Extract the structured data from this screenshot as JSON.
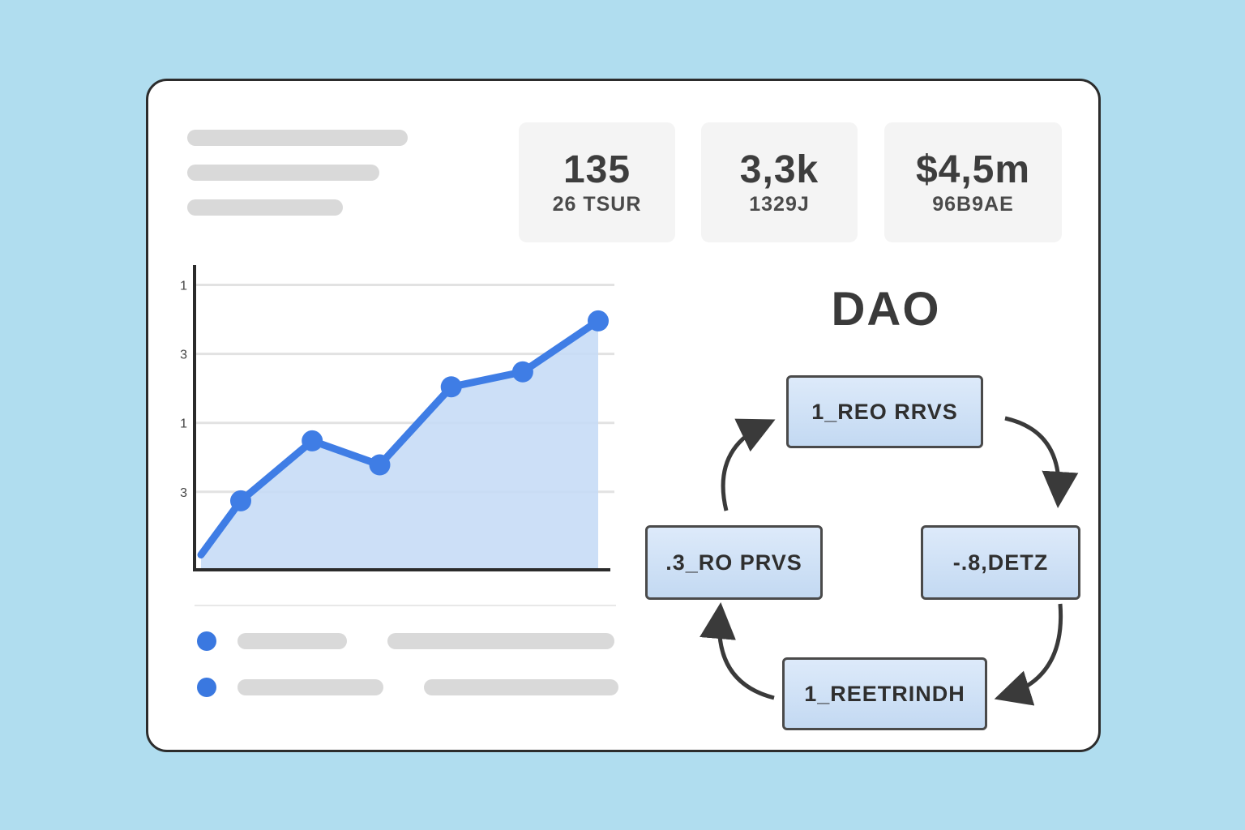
{
  "page": {
    "background_color": "#b0ddef",
    "card_background": "#ffffff",
    "card_border_color": "#2c2c2c"
  },
  "stats": [
    {
      "value": "135",
      "label": "26 TSUR"
    },
    {
      "value": "3,3k",
      "label": "1329J"
    },
    {
      "value": "$4,5m",
      "label": "96B9AE"
    }
  ],
  "chart_data": {
    "type": "area",
    "title": "",
    "xlabel": "",
    "ylabel": "",
    "x": [
      0,
      1,
      2.8,
      4.5,
      6.3,
      8.1,
      10
    ],
    "values": [
      5,
      23,
      43,
      35,
      61,
      66,
      83
    ],
    "xlim": [
      0,
      10
    ],
    "ylim": [
      0,
      100
    ],
    "y_ticks": [
      {
        "label": "1",
        "value": 95
      },
      {
        "label": "3",
        "value": 72
      },
      {
        "label": "1",
        "value": 49
      },
      {
        "label": "3",
        "value": 26
      }
    ],
    "grid": true,
    "legend": "none",
    "line_color": "#3f7de5",
    "fill_color": "#c7dbf6",
    "axis_color": "#2b2b2b"
  },
  "diagram": {
    "title": "DAO",
    "nodes": {
      "top": "1_REO RRVS",
      "right": "-.8,DETZ",
      "bottom": "1_REETRINDH",
      "left": ".3_RO PRVS"
    },
    "node_fill": "#d6e6f8",
    "node_border": "#4a4a4a",
    "arrow_color": "#3a3a3a"
  },
  "list": {
    "bullet_color": "#3a78e0"
  }
}
